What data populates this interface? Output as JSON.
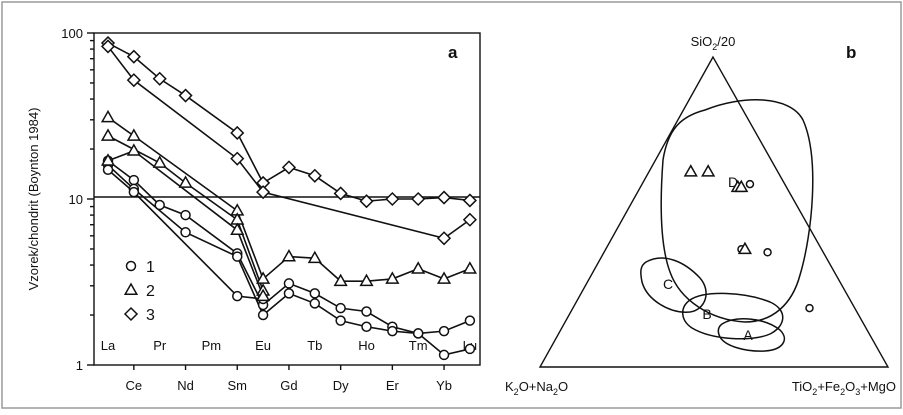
{
  "chart_data": [
    {
      "panel": "a",
      "type": "line",
      "ylabel": "Vzorek/chondrit (Boynton 1984)",
      "yscale": "log",
      "ylim": [
        1,
        100
      ],
      "ytick_labels": [
        "1",
        "10",
        "100"
      ],
      "reference_line_y": 10,
      "categories": [
        "La",
        "Ce",
        "Pr",
        "Nd",
        "Pm",
        "Sm",
        "Eu",
        "Gd",
        "Tb",
        "Dy",
        "Ho",
        "Er",
        "Tm",
        "Yb",
        "Lu"
      ],
      "categories_lower_row": [
        "La",
        "Pr",
        "Pm",
        "Eu",
        "Tb",
        "Ho",
        "Tm",
        "Lu"
      ],
      "categories_upper_row": [
        "Ce",
        "Nd",
        "Sm",
        "Gd",
        "Dy",
        "Er",
        "Yb"
      ],
      "legend": [
        {
          "key": "circle",
          "label": "1"
        },
        {
          "key": "triangle",
          "label": "2"
        },
        {
          "key": "diamond",
          "label": "3"
        }
      ],
      "series": [
        {
          "marker": "circle",
          "points": [
            [
              0,
              17
            ],
            [
              1,
              13
            ],
            [
              2,
              9.2
            ],
            [
              3,
              8
            ],
            [
              5,
              4.7
            ],
            [
              6,
              2.3
            ],
            [
              7,
              3.1
            ],
            [
              8,
              2.7
            ],
            [
              9,
              2.2
            ],
            [
              10,
              2.1
            ],
            [
              11,
              1.7
            ],
            [
              12,
              1.55
            ],
            [
              13,
              1.6
            ],
            [
              14,
              1.85
            ]
          ]
        },
        {
          "marker": "circle",
          "points": [
            [
              0,
              16
            ],
            [
              1,
              11.5
            ],
            [
              3,
              6.3
            ],
            [
              5,
              4.5
            ],
            [
              6,
              2.0
            ],
            [
              7,
              2.7
            ],
            [
              8,
              2.35
            ],
            [
              9,
              1.85
            ],
            [
              10,
              1.7
            ],
            [
              11,
              1.6
            ],
            [
              12,
              1.55
            ],
            [
              13,
              1.15
            ],
            [
              14,
              1.25
            ]
          ]
        },
        {
          "marker": "circle",
          "points": [
            [
              0,
              15
            ],
            [
              1,
              11
            ],
            [
              5,
              2.6
            ],
            [
              6,
              2.5
            ]
          ]
        },
        {
          "marker": "triangle",
          "points": [
            [
              0,
              31
            ],
            [
              1,
              24
            ],
            [
              5,
              8.5
            ],
            [
              6,
              3.3
            ],
            [
              7,
              4.5
            ],
            [
              8,
              4.4
            ],
            [
              9,
              3.2
            ],
            [
              10,
              3.2
            ],
            [
              11,
              3.3
            ],
            [
              12,
              3.8
            ],
            [
              13,
              3.3
            ],
            [
              14,
              3.8
            ]
          ]
        },
        {
          "marker": "triangle",
          "points": [
            [
              0,
              24
            ],
            [
              2,
              16.5
            ],
            [
              3,
              12.5
            ],
            [
              5,
              7.5
            ],
            [
              6,
              2.8
            ]
          ]
        },
        {
          "marker": "triangle",
          "points": [
            [
              0,
              17
            ],
            [
              1,
              19.5
            ],
            [
              5,
              6.5
            ],
            [
              6,
              2.6
            ]
          ]
        },
        {
          "marker": "diamond",
          "points": [
            [
              0,
              87
            ],
            [
              1,
              72
            ],
            [
              2,
              53
            ],
            [
              3,
              42
            ],
            [
              5,
              25
            ],
            [
              6,
              12.5
            ],
            [
              7,
              15.5
            ],
            [
              8,
              13.8
            ],
            [
              9,
              10.8
            ],
            [
              10,
              9.7
            ],
            [
              11,
              10
            ],
            [
              12,
              10
            ],
            [
              13,
              10.2
            ],
            [
              14,
              9.8
            ]
          ]
        },
        {
          "marker": "diamond",
          "points": [
            [
              0,
              83
            ],
            [
              1,
              52
            ],
            [
              5,
              17.5
            ],
            [
              6,
              11
            ],
            [
              13,
              5.8
            ],
            [
              14,
              7.5
            ]
          ]
        }
      ],
      "title": "a"
    },
    {
      "panel": "b",
      "type": "scatter",
      "diagram": "ternary",
      "title": "b",
      "apex_labels": {
        "top": {
          "pre": "SiO",
          "sub": "2",
          "post": "/20"
        },
        "bottom_left": {
          "pre": "K",
          "sub1": "2",
          "mid": "O+Na",
          "sub2": "2",
          "post": "O"
        },
        "bottom_right": {
          "pre": "TiO",
          "sub1": "2",
          "mid": "+Fe",
          "sub2": "2",
          "mid2": "O",
          "sub3": "3",
          "post": "+MgO"
        }
      },
      "fields": [
        "A",
        "B",
        "C",
        "D"
      ],
      "points_note": "marker shapes as in panel a legend",
      "points": [
        {
          "marker": "triangle",
          "t": 0.63,
          "r": 0.12
        },
        {
          "marker": "triangle",
          "t": 0.63,
          "r": 0.17
        },
        {
          "marker": "triangle",
          "t": 0.58,
          "r": 0.28
        },
        {
          "marker": "triangle",
          "t": 0.58,
          "r": 0.29
        },
        {
          "marker": "circle",
          "t": 0.59,
          "r": 0.31
        },
        {
          "marker": "circle",
          "t": 0.38,
          "r": 0.39
        },
        {
          "marker": "triangle",
          "t": 0.38,
          "r": 0.4
        },
        {
          "marker": "circle",
          "t": 0.37,
          "r": 0.47
        },
        {
          "marker": "circle",
          "t": 0.19,
          "r": 0.68
        }
      ]
    }
  ]
}
